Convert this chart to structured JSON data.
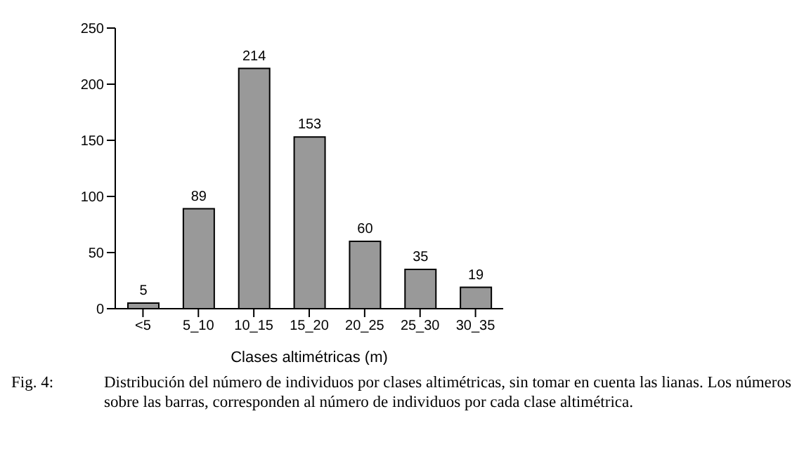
{
  "chart_data": {
    "type": "bar",
    "xlabel": "Clases altimétricas (m)",
    "categories": [
      "<5",
      "5_10",
      "10_15",
      "15_20",
      "20_25",
      "25_30",
      "30_35"
    ],
    "values": [
      5,
      89,
      214,
      153,
      60,
      35,
      19
    ],
    "color": "#999999",
    "ylim": [
      0,
      250
    ],
    "yticks": [
      0,
      50,
      100,
      150,
      200,
      250
    ],
    "data_labels": true,
    "annotations": [
      "Fig. 4:",
      "Distribución del número de individuos por clases altimétricas, sin tomar en cuenta las lianas. Los números sobre las barras, corresponden al número de individuos por cada clase altimétrica."
    ]
  }
}
